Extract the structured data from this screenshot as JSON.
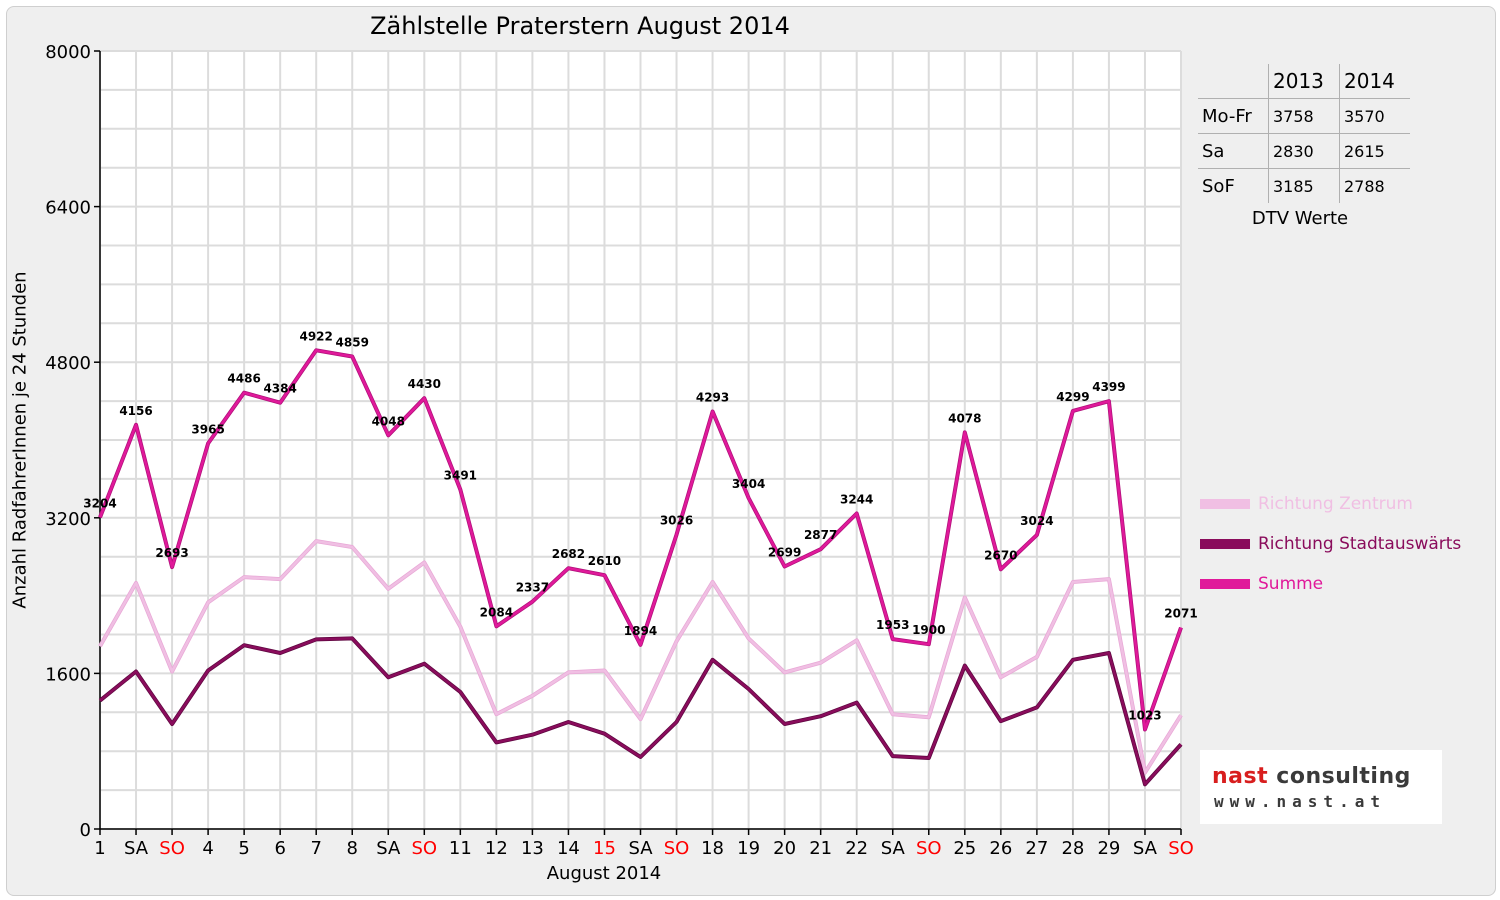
{
  "chart_data": {
    "type": "line",
    "title": "Zählstelle Praterstern August 2014",
    "xlabel": "August 2014",
    "ylabel": "Anzahl RadfahrerInnen je 24 Stunden",
    "ylim": [
      0,
      8000
    ],
    "yticks": [
      0,
      1600,
      3200,
      4800,
      6400,
      8000
    ],
    "grid": true,
    "legend_position": "right",
    "categories": [
      "1",
      "SA",
      "SO",
      "4",
      "5",
      "6",
      "7",
      "8",
      "SA",
      "SO",
      "11",
      "12",
      "13",
      "14",
      "15",
      "SA",
      "SO",
      "18",
      "19",
      "20",
      "21",
      "22",
      "SA",
      "SO",
      "25",
      "26",
      "27",
      "28",
      "29",
      "SA",
      "SO"
    ],
    "highlight_categories": [
      "SO",
      "15"
    ],
    "highlight_color": "#ff0000",
    "series": [
      {
        "name": "Richtung Zentrum",
        "color": "#f0bfe3",
        "values": [
          1880,
          2530,
          1620,
          2330,
          2590,
          2570,
          2960,
          2900,
          2470,
          2740,
          2080,
          1180,
          1370,
          1610,
          1630,
          1130,
          1930,
          2540,
          1960,
          1610,
          1710,
          1940,
          1180,
          1150,
          2380,
          1560,
          1770,
          2540,
          2570,
          580,
          1170
        ],
        "labels": false
      },
      {
        "name": "Richtung Stadtauswärts",
        "color": "#8a0c5c",
        "values": [
          1320,
          1620,
          1080,
          1630,
          1890,
          1810,
          1950,
          1960,
          1560,
          1700,
          1410,
          890,
          970,
          1100,
          980,
          740,
          1100,
          1740,
          1440,
          1080,
          1160,
          1300,
          750,
          730,
          1680,
          1110,
          1250,
          1740,
          1810,
          460,
          870
        ],
        "labels": false
      },
      {
        "name": "Summe",
        "color": "#e0199a",
        "values": [
          3204,
          4156,
          2693,
          3965,
          4486,
          4384,
          4922,
          4859,
          4048,
          4430,
          3491,
          2084,
          2337,
          2682,
          2610,
          1894,
          3026,
          4293,
          3404,
          2699,
          2877,
          3244,
          1953,
          1900,
          4078,
          2670,
          3024,
          4299,
          4399,
          1023,
          2071
        ],
        "labels": true
      }
    ]
  },
  "dtv_table": {
    "headers": [
      "",
      "2013",
      "2014"
    ],
    "rows": [
      {
        "label": "Mo-Fr",
        "v2013": "3758",
        "v2014": "3570"
      },
      {
        "label": "Sa",
        "v2013": "2830",
        "v2014": "2615"
      },
      {
        "label": "SoF",
        "v2013": "3185",
        "v2014": "2788"
      }
    ],
    "caption": "DTV Werte"
  },
  "logo": {
    "word1": "nast",
    "word2": "consulting",
    "url": "www.nast.at"
  }
}
